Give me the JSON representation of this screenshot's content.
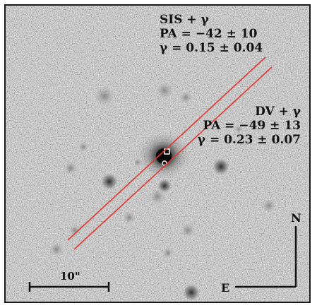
{
  "annotations": {
    "sis": {
      "model": "SIS + γ",
      "pa": "PA = −42 ± 10",
      "gamma": "γ = 0.15 ± 0.04"
    },
    "dv": {
      "model": "DV + γ",
      "pa": "PA = −49 ± 13",
      "gamma": "γ = 0.23 ± 0.07"
    }
  },
  "scale_bar": {
    "label": "10\""
  },
  "compass": {
    "north": "N",
    "east": "E"
  },
  "colors": {
    "shear_lines": "#e8352b",
    "frame": "#1a1a1a",
    "background": "#d9d9d9"
  }
}
